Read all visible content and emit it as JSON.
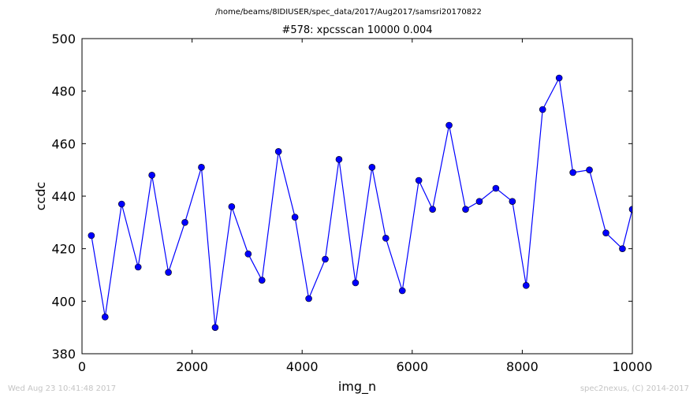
{
  "header": {
    "suptitle": "/home/beams/8IDIUSER/spec_data/2017/Aug2017/samsri20170822",
    "title": "#578: xpcsscan 10000 0.004"
  },
  "footer": {
    "timestamp": "Wed Aug 23 10:41:48 2017",
    "credit": "spec2nexus, (C) 2014-2017"
  },
  "chart_data": {
    "type": "line",
    "title": "#578: xpcsscan 10000 0.004",
    "xlabel": "img_n",
    "ylabel": "ccdc",
    "xlim": [
      0,
      10000
    ],
    "ylim": [
      380,
      500
    ],
    "xticks": [
      0,
      2000,
      4000,
      6000,
      8000,
      10000
    ],
    "yticks": [
      380,
      400,
      420,
      440,
      460,
      480,
      500
    ],
    "grid": false,
    "line_color": "#0000ff",
    "marker": "circle",
    "series": [
      {
        "x": [
          170,
          420,
          720,
          1020,
          1270,
          1570,
          1870,
          2170,
          2420,
          2720,
          3020,
          3270,
          3570,
          3870,
          4120,
          4420,
          4670,
          4970,
          5270,
          5520,
          5820,
          6120,
          6370,
          6670,
          6970,
          7220,
          7520,
          7820,
          8070,
          8370,
          8670,
          8920,
          9220,
          9520,
          9820,
          10000
        ],
        "y": [
          425,
          394,
          437,
          413,
          448,
          411,
          430,
          451,
          390,
          436,
          418,
          408,
          457,
          432,
          401,
          416,
          454,
          407,
          451,
          424,
          404,
          446,
          435,
          467,
          435,
          438,
          443,
          438,
          406,
          473,
          485,
          449,
          450,
          426,
          420,
          435
        ]
      }
    ]
  }
}
